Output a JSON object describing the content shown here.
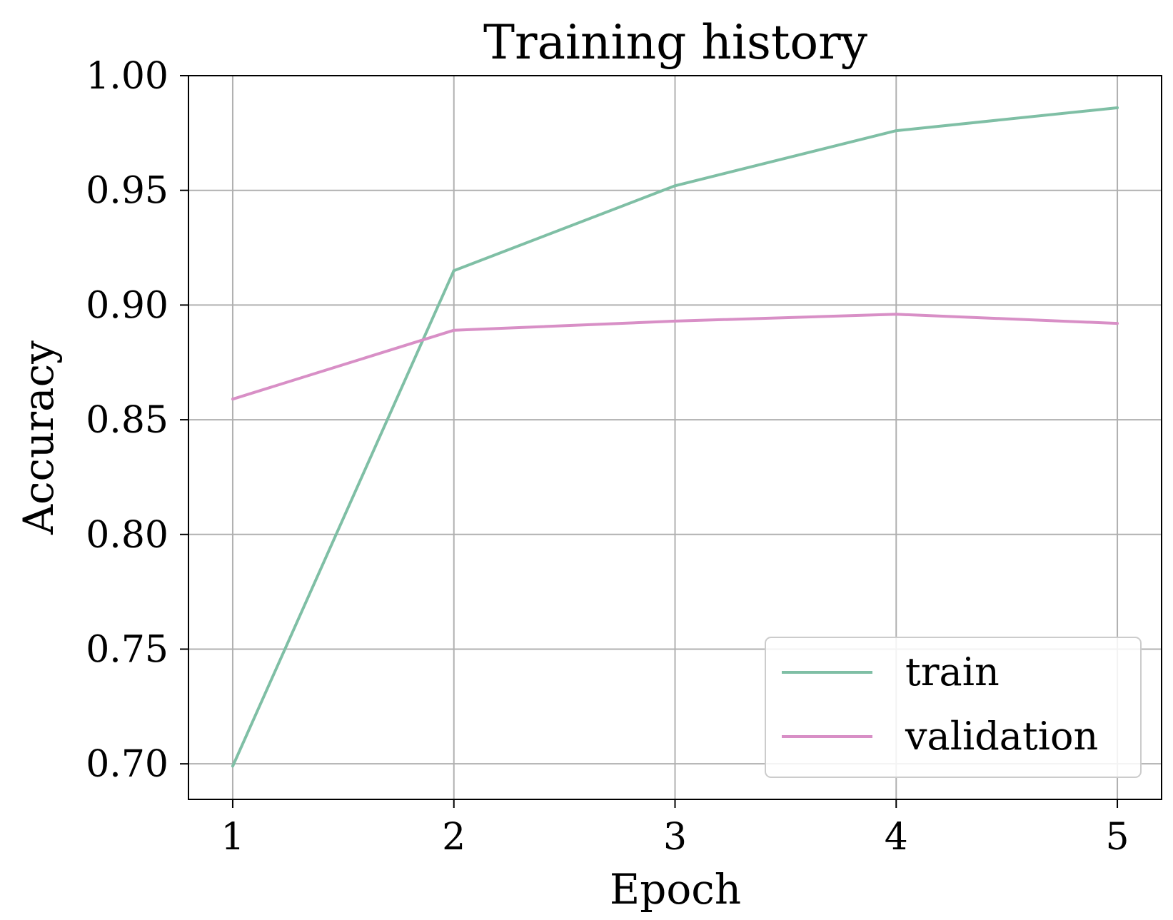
{
  "chart_data": {
    "type": "line",
    "title": "Training history",
    "xlabel": "Epoch",
    "ylabel": "Accuracy",
    "x": [
      1,
      2,
      3,
      4,
      5
    ],
    "xlim": [
      0.8,
      5.2
    ],
    "ylim": [
      0.6845,
      1.0
    ],
    "xticks": [
      1,
      2,
      3,
      4,
      5
    ],
    "xtick_labels": [
      "1",
      "2",
      "3",
      "4",
      "5"
    ],
    "yticks": [
      0.7,
      0.75,
      0.8,
      0.85,
      0.9,
      0.95,
      1.0
    ],
    "ytick_labels": [
      "0.70",
      "0.75",
      "0.80",
      "0.85",
      "0.90",
      "0.95",
      "1.00"
    ],
    "grid": true,
    "legend_position": "lower-right",
    "series": [
      {
        "name": "train",
        "color": "#7fbfa5",
        "values": [
          0.699,
          0.915,
          0.952,
          0.976,
          0.986
        ]
      },
      {
        "name": "validation",
        "color": "#d88fc6",
        "values": [
          0.859,
          0.889,
          0.893,
          0.896,
          0.892
        ]
      }
    ]
  }
}
